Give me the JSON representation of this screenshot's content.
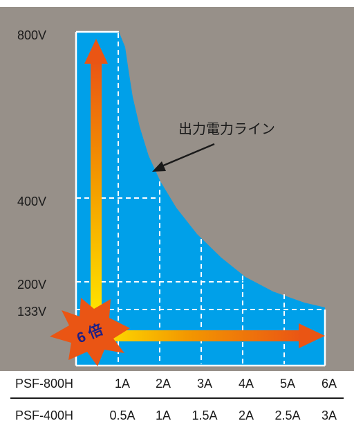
{
  "colors": {
    "background": "#979089",
    "area_fill": "#00a0e9",
    "grid_line": "#ffffff",
    "arrow_orange": "#ea5514",
    "arrow_yellow": "#ffe600",
    "burst": "#ea5514",
    "badge_text": "#1d2088",
    "text": "#1a1a1a"
  },
  "y_axis": {
    "labels": [
      "800V",
      "400V",
      "200V",
      "133V"
    ]
  },
  "power_line_label": "出力電力ライン",
  "badge": "6 倍",
  "models": [
    {
      "name": "PSF-800H",
      "currents": [
        "1A",
        "2A",
        "3A",
        "4A",
        "5A",
        "6A"
      ]
    },
    {
      "name": "PSF-400H",
      "currents": [
        "0.5A",
        "1A",
        "1.5A",
        "2A",
        "2.5A",
        "3A"
      ]
    }
  ]
}
